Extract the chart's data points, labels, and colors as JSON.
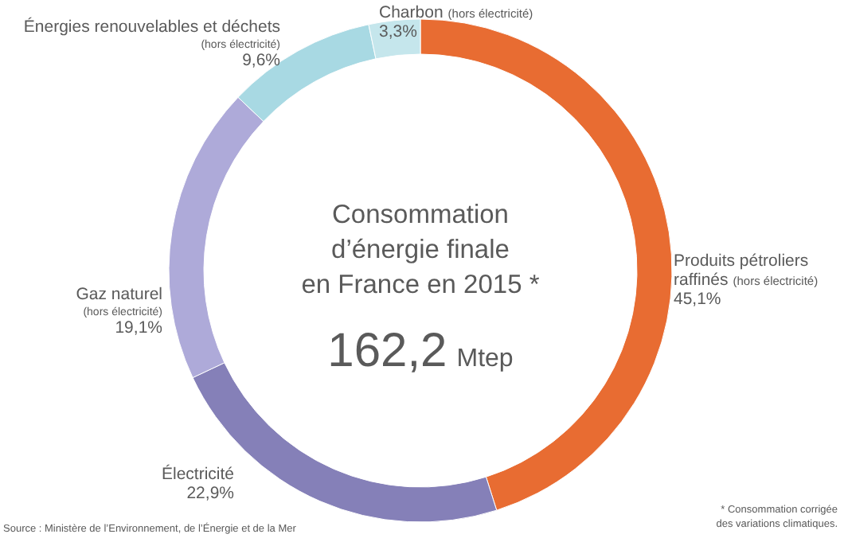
{
  "chart_data": {
    "type": "donut",
    "title": "Consommation d’énergie finale en France en 2015 *",
    "subtitle": "162,2 Mtep",
    "categories": [
      "Produits pétroliers raffinés (hors électricité)",
      "Électricité",
      "Gaz naturel (hors électricité)",
      "Énergies renouvelables et déchets (hors électricité)",
      "Charbon (hors électricité)"
    ],
    "values": [
      45.1,
      22.9,
      19.1,
      9.6,
      3.3
    ],
    "value_labels": [
      "45,1%",
      "22,9%",
      "19,1%",
      "9,6%",
      "3,3%"
    ],
    "colors": [
      "#e86c32",
      "#8580b8",
      "#aeaad9",
      "#a8d9e3",
      "#c5e6ec"
    ],
    "annotations": [
      "Source : Ministère de l’Environnement, de l’Énergie et de la Mer",
      "* Consommation corrigée des variations climatiques."
    ]
  }
}
